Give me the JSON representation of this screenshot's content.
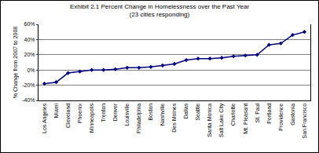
{
  "chart_data": {
    "type": "line",
    "title": "Exhibit 2.1 Percent Change in Homelessness over the Past Year",
    "subtitle": "(23 cities responding)",
    "y_label": "% Change from 2007 to 2008",
    "categories": [
      "Los Angeles",
      "Miami",
      "Cleveland",
      "Phoenix",
      "Minneapolis",
      "Trenton",
      "Denver",
      "Louisville",
      "Philadelphia",
      "Boston",
      "Nashville",
      "Des Moines",
      "Dallas",
      "Seattle",
      "Santa Monica",
      "Salt Lake City",
      "Charlotte",
      "Mt. Pleasant",
      "St. Paul",
      "Portland",
      "Providence",
      "Gastonia",
      "San Francisco"
    ],
    "values": [
      -18,
      -16,
      -4,
      -2,
      0,
      0,
      1,
      3,
      3,
      4,
      6,
      8,
      13,
      15,
      15,
      16,
      18,
      19,
      20,
      33,
      35,
      46,
      50
    ],
    "color": "#000080",
    "marker": "diamond",
    "line_style": "solid",
    "ylim": [
      -40,
      60
    ],
    "yticks": [
      {
        "value": -40,
        "label": "-40%"
      },
      {
        "value": -20,
        "label": "-20%"
      },
      {
        "value": 0,
        "label": "0%"
      },
      {
        "value": 20,
        "label": "20%"
      },
      {
        "value": 40,
        "label": "40%"
      },
      {
        "value": 60,
        "label": "60%"
      }
    ],
    "grid": true
  }
}
